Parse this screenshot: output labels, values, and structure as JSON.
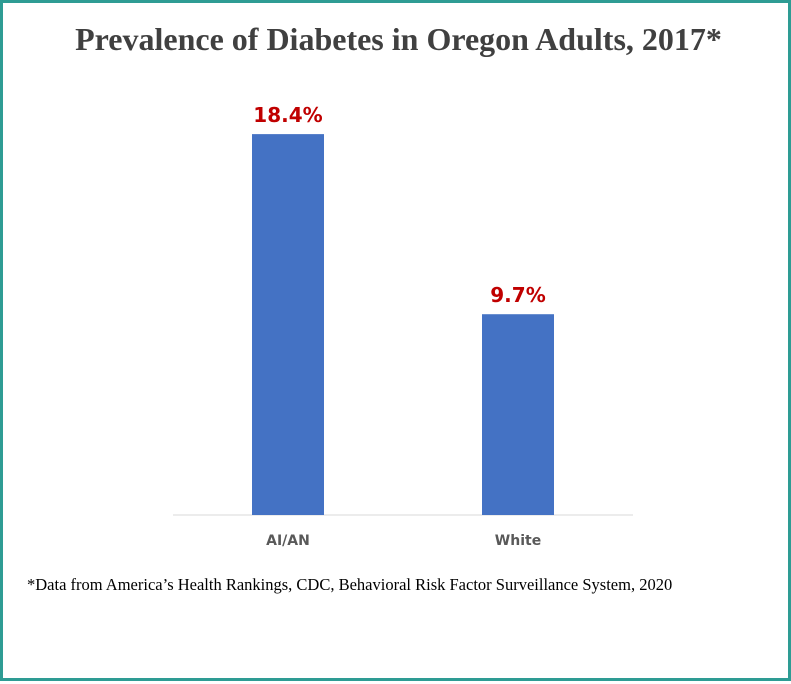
{
  "chart_data": {
    "type": "bar",
    "title": "Prevalence of Diabetes in Oregon Adults, 2017*",
    "categories": [
      "AI/AN",
      "White"
    ],
    "values": [
      18.4,
      9.7
    ],
    "data_labels": [
      "18.4%",
      "9.7%"
    ],
    "xlabel": "",
    "ylabel": "",
    "ylim": [
      0,
      20
    ],
    "grid": false,
    "legend": "none",
    "colors": {
      "bar": "#4472c4",
      "data_label": "#c00000",
      "axis": "#d9d9d9",
      "tick_label": "#595959",
      "border": "#2e9c94"
    }
  },
  "footnote": "*Data from America’s Health Rankings, CDC, Behavioral Risk Factor Surveillance System, 2020"
}
